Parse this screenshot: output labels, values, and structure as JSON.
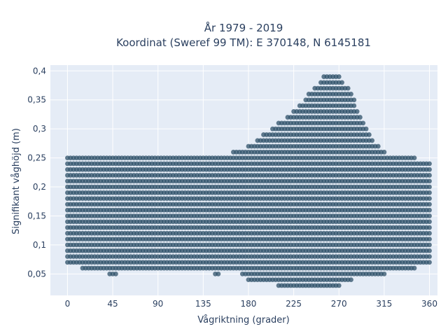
{
  "chart_data": {
    "type": "scatter",
    "title_lines": [
      "År 1979 - 2019",
      "Koordinat (Sweref 99 TM): E 370148, N 6145181"
    ],
    "xlabel": "Vågriktning (grader)",
    "ylabel": "Signifikant våghöjd (m)",
    "xlim": [
      -17,
      368
    ],
    "ylim": [
      0.013,
      0.41
    ],
    "x_ticks": [
      0,
      45,
      90,
      135,
      180,
      225,
      270,
      315,
      360
    ],
    "x_tick_labels": [
      "0",
      "45",
      "90",
      "135",
      "180",
      "225",
      "270",
      "315",
      "360"
    ],
    "y_ticks": [
      0.05,
      0.1,
      0.15,
      0.2,
      0.25,
      0.3,
      0.35,
      0.4
    ],
    "y_tick_labels": [
      "0,05",
      "0,1",
      "0,15",
      "0,2",
      "0,25",
      "0,3",
      "0,35",
      "0,4"
    ],
    "grid": true,
    "marker_color": "#2e5068",
    "plot_bg": "#e5ecf6",
    "height_step": 0.01,
    "direction_step": 3,
    "envelope": {
      "direction": [
        0,
        15,
        45,
        90,
        120,
        150,
        165,
        180,
        195,
        210,
        225,
        240,
        255,
        260,
        270,
        280,
        300,
        315,
        330,
        345,
        360
      ],
      "upper": [
        0.25,
        0.25,
        0.25,
        0.25,
        0.25,
        0.25,
        0.26,
        0.27,
        0.29,
        0.31,
        0.33,
        0.36,
        0.39,
        0.39,
        0.39,
        0.37,
        0.29,
        0.26,
        0.25,
        0.25,
        0.24
      ],
      "lower": [
        0.07,
        0.06,
        0.05,
        0.06,
        0.06,
        0.05,
        0.06,
        0.04,
        0.04,
        0.03,
        0.03,
        0.03,
        0.03,
        0.03,
        0.03,
        0.04,
        0.05,
        0.05,
        0.06,
        0.06,
        0.07
      ]
    }
  }
}
